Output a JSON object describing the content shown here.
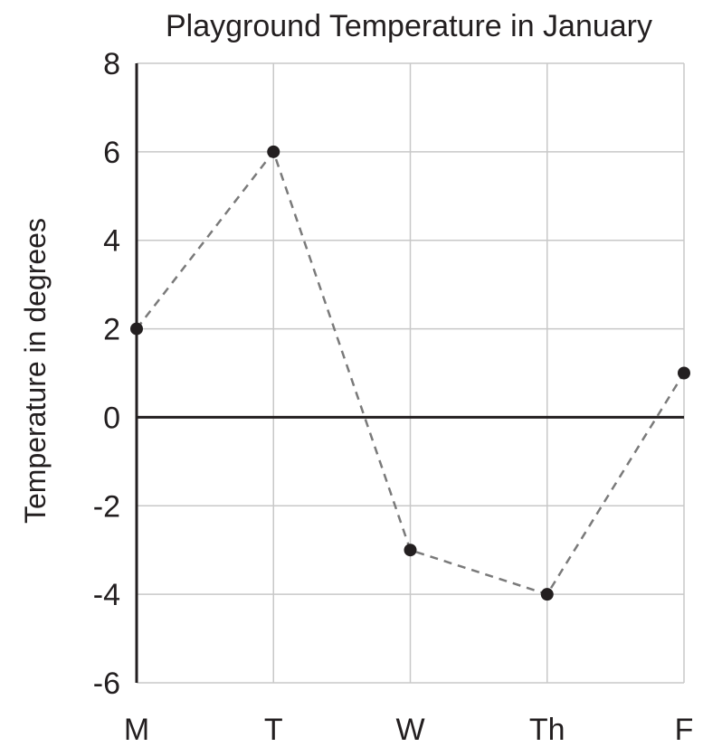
{
  "chart_data": {
    "type": "line",
    "title": "Playground Temperature in January",
    "xlabel": "",
    "ylabel": "Temperature in degrees",
    "categories": [
      "M",
      "T",
      "W",
      "Th",
      "F"
    ],
    "series": [
      {
        "values": [
          2,
          6,
          -3,
          -4,
          1
        ]
      }
    ],
    "ylim": [
      -6,
      8
    ],
    "yticks": [
      -6,
      -4,
      -2,
      0,
      2,
      4,
      6,
      8
    ],
    "grid": true,
    "legend": "none",
    "colors": {
      "line": "#7a7a7a",
      "marker": "#231f20",
      "axis": "#231f20",
      "grid": "#c8c8c8"
    }
  }
}
